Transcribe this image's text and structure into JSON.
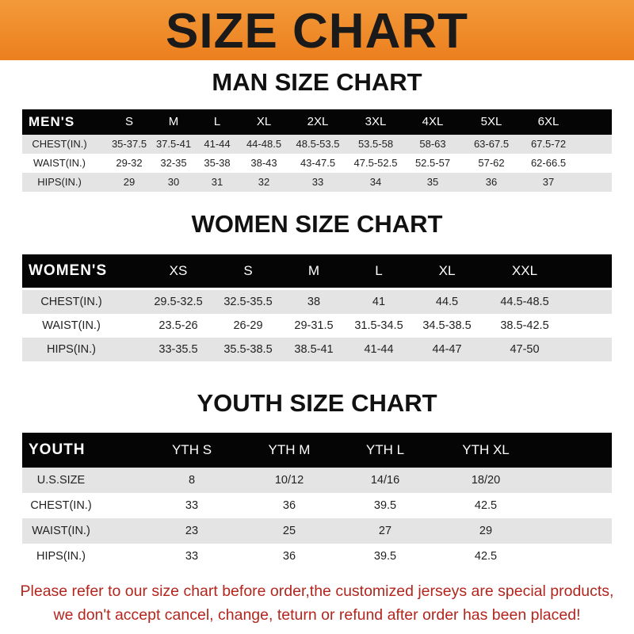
{
  "title": "SIZE CHART",
  "sections": [
    {
      "title": "MAN SIZE CHART",
      "header": [
        "MEN'S",
        "S",
        "M",
        "L",
        "XL",
        "2XL",
        "3XL",
        "4XL",
        "5XL",
        "6XL"
      ],
      "rows": [
        [
          "CHEST(IN.)",
          "35-37.5",
          "37.5-41",
          "41-44",
          "44-48.5",
          "48.5-53.5",
          "53.5-58",
          "58-63",
          "63-67.5",
          "67.5-72"
        ],
        [
          "WAIST(IN.)",
          "29-32",
          "32-35",
          "35-38",
          "38-43",
          "43-47.5",
          "47.5-52.5",
          "52.5-57",
          "57-62",
          "62-66.5"
        ],
        [
          "HIPS(IN.)",
          "29",
          "30",
          "31",
          "32",
          "33",
          "34",
          "35",
          "36",
          "37"
        ]
      ]
    },
    {
      "title": "WOMEN SIZE CHART",
      "header": [
        "WOMEN'S",
        "XS",
        "S",
        "M",
        "L",
        "XL",
        "XXL"
      ],
      "rows": [
        [
          "CHEST(IN.)",
          "29.5-32.5",
          "32.5-35.5",
          "38",
          "41",
          "44.5",
          "44.5-48.5"
        ],
        [
          "WAIST(IN.)",
          "23.5-26",
          "26-29",
          "29-31.5",
          "31.5-34.5",
          "34.5-38.5",
          "38.5-42.5"
        ],
        [
          "HIPS(IN.)",
          "33-35.5",
          "35.5-38.5",
          "38.5-41",
          "41-44",
          "44-47",
          "47-50"
        ]
      ]
    },
    {
      "title": "YOUTH SIZE CHART",
      "header": [
        "YOUTH",
        "YTH S",
        "YTH M",
        "YTH L",
        "YTH XL"
      ],
      "rows": [
        [
          "U.S.SIZE",
          "8",
          "10/12",
          "14/16",
          "18/20"
        ],
        [
          "CHEST(IN.)",
          "33",
          "36",
          "39.5",
          "42.5"
        ],
        [
          "WAIST(IN.)",
          "23",
          "25",
          "27",
          "29"
        ],
        [
          "HIPS(IN.)",
          "33",
          "36",
          "39.5",
          "42.5"
        ]
      ]
    }
  ],
  "footer": {
    "line1": "Please refer to our size chart before order,the customized jerseys are special products,",
    "line2": "we don't accept cancel, change, teturn or refund after order has been placed!"
  },
  "colors": {
    "banner": "#ec7f1e",
    "header_row": "#050505",
    "stripe": "#e4e4e4",
    "footer_text": "#b3261e"
  }
}
